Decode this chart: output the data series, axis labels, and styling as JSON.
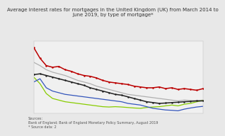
{
  "title": "Average interest rates for mortgages in the United Kingdom (UK) from March 2014 to\nJune 2019, by type of mortgage*",
  "source_text": "Sources:\nBank of England; Bank of England Monetary Policy Summary, August 2019\n* Source data: 2",
  "n_points": 28,
  "series": {
    "red": {
      "color": "#bb0000",
      "values": [
        5.2,
        4.55,
        4.1,
        4.0,
        4.05,
        3.85,
        3.75,
        3.6,
        3.5,
        3.45,
        3.35,
        3.2,
        3.1,
        3.05,
        3.0,
        2.95,
        2.85,
        2.8,
        2.75,
        2.75,
        2.8,
        2.7,
        2.75,
        2.65,
        2.7,
        2.65,
        2.6,
        2.7
      ],
      "marker": "o",
      "markersize": 1.8
    },
    "gray": {
      "color": "#b0b0b0",
      "values": [
        4.3,
        4.1,
        3.85,
        3.7,
        3.6,
        3.5,
        3.35,
        3.2,
        3.1,
        3.0,
        2.85,
        2.75,
        2.65,
        2.55,
        2.45,
        2.35,
        2.3,
        2.25,
        2.2,
        2.15,
        2.1,
        2.05,
        2.0,
        1.95,
        2.0,
        1.98,
        1.97,
        2.0
      ],
      "marker": null,
      "markersize": 0
    },
    "black": {
      "color": "#222222",
      "values": [
        3.55,
        3.6,
        3.5,
        3.4,
        3.3,
        3.2,
        3.1,
        3.0,
        2.9,
        2.75,
        2.65,
        2.55,
        2.45,
        2.35,
        2.3,
        2.2,
        2.1,
        2.0,
        1.9,
        1.85,
        1.8,
        1.82,
        1.85,
        1.87,
        1.9,
        1.92,
        1.95,
        1.95
      ],
      "marker": "o",
      "markersize": 1.8
    },
    "green": {
      "color": "#88cc00",
      "values": [
        3.4,
        3.0,
        2.4,
        2.1,
        2.0,
        1.9,
        1.85,
        1.8,
        1.75,
        1.7,
        1.65,
        1.6,
        1.58,
        1.6,
        1.58,
        1.55,
        1.52,
        1.5,
        1.55,
        1.58,
        1.6,
        1.65,
        1.7,
        1.65,
        1.75,
        1.8,
        1.9,
        1.98
      ],
      "marker": null,
      "markersize": 0
    },
    "blue": {
      "color": "#3355bb",
      "values": [
        3.1,
        3.3,
        2.75,
        2.55,
        2.45,
        2.35,
        2.3,
        2.25,
        2.2,
        2.15,
        2.1,
        2.05,
        2.0,
        1.95,
        1.9,
        1.8,
        1.75,
        1.7,
        1.6,
        1.5,
        1.45,
        1.4,
        1.38,
        1.35,
        1.45,
        1.52,
        1.58,
        1.62
      ],
      "marker": null,
      "markersize": 0
    }
  },
  "xlim": [
    0,
    27
  ],
  "ylim": [
    1.2,
    5.6
  ],
  "background_color": "#e8e8e8",
  "plot_bg_color": "#f0f0f0",
  "title_fontsize": 5.0,
  "source_fontsize": 3.5,
  "linewidths": {
    "red": 1.1,
    "gray": 0.9,
    "black": 1.1,
    "green": 0.9,
    "blue": 0.9
  }
}
